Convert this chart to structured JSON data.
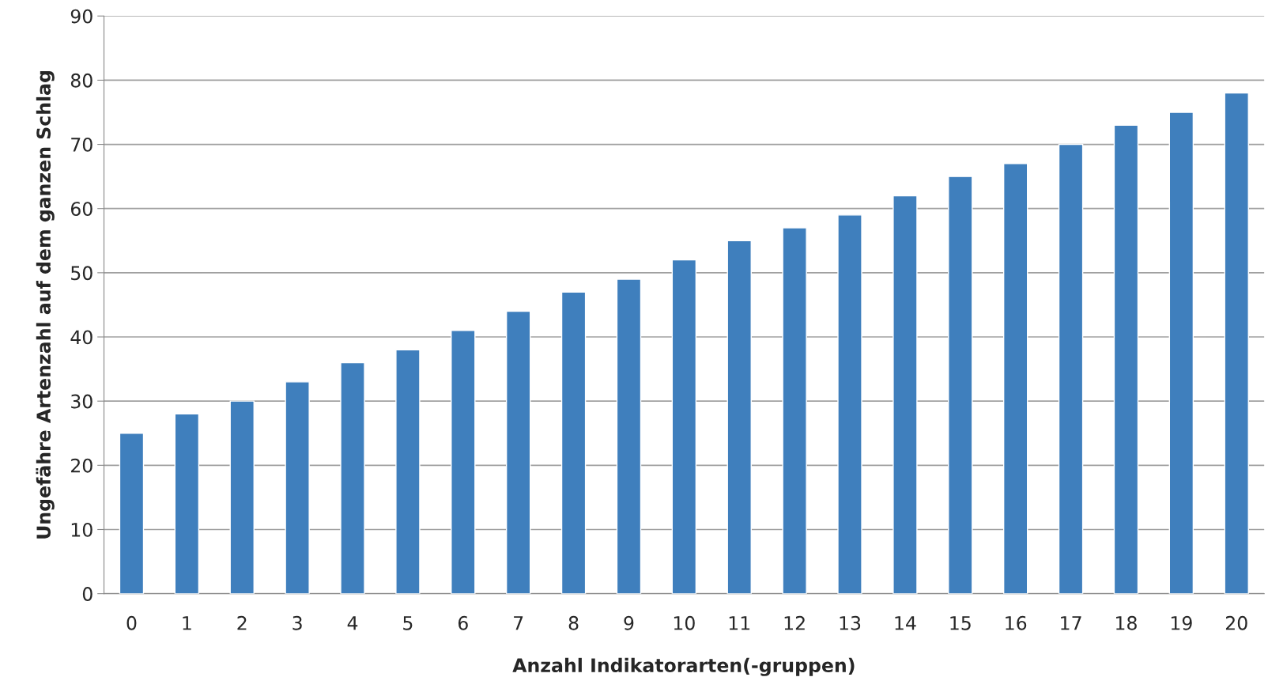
{
  "chart_data": {
    "type": "bar",
    "xlabel": "Anzahl Indikatorarten(-gruppen)",
    "ylabel": "Ungefähre Artenzahl auf dem ganzen Schlag",
    "categories": [
      "0",
      "1",
      "2",
      "3",
      "4",
      "5",
      "6",
      "7",
      "8",
      "9",
      "10",
      "11",
      "12",
      "13",
      "14",
      "15",
      "16",
      "17",
      "18",
      "19",
      "20"
    ],
    "values": [
      25,
      28,
      30,
      33,
      36,
      38,
      41,
      44,
      47,
      49,
      52,
      55,
      57,
      59,
      62,
      65,
      67,
      70,
      73,
      75,
      78
    ],
    "color": "#3f7fbd",
    "ylim": [
      0,
      90
    ],
    "yticks": [
      0,
      10,
      20,
      30,
      40,
      50,
      60,
      70,
      80,
      90
    ],
    "grid": "y",
    "legend": false
  }
}
